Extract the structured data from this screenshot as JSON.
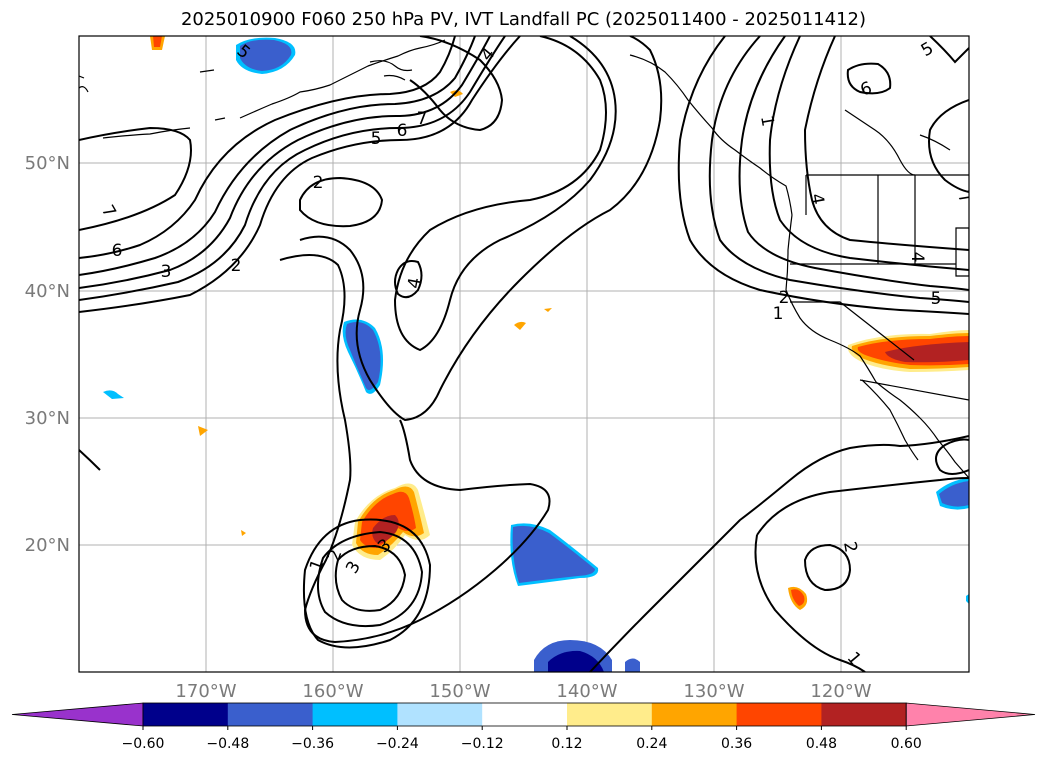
{
  "title": "2025010900 F060 250 hPa PV, IVT Landfall PC (2025011400 - 2025011412)",
  "map": {
    "lat_labels": [
      "50°N",
      "40°N",
      "30°N",
      "20°N"
    ],
    "lon_labels": [
      "170°W",
      "160°W",
      "150°W",
      "140°W",
      "130°W",
      "120°W"
    ],
    "contour_labels": [
      "6",
      "7",
      "5",
      "6",
      "7",
      "4",
      "5",
      "2",
      "3",
      "2",
      "4",
      "1",
      "2",
      "3",
      "3",
      "6",
      "5",
      "2",
      "1",
      "1",
      "2",
      "1",
      "5",
      "4",
      "7",
      "4"
    ]
  },
  "colorbar": {
    "ticks": [
      "−0.60",
      "−0.48",
      "−0.36",
      "−0.24",
      "−0.12",
      "0.12",
      "0.24",
      "0.36",
      "0.48",
      "0.60"
    ],
    "colors": [
      "#9932cc",
      "#00008b",
      "#3a5fcd",
      "#00bfff",
      "#b0e2ff",
      "#ffffff",
      "#ffec8b",
      "#ffa500",
      "#ff4500",
      "#b22222",
      "#ff82ab"
    ]
  }
}
